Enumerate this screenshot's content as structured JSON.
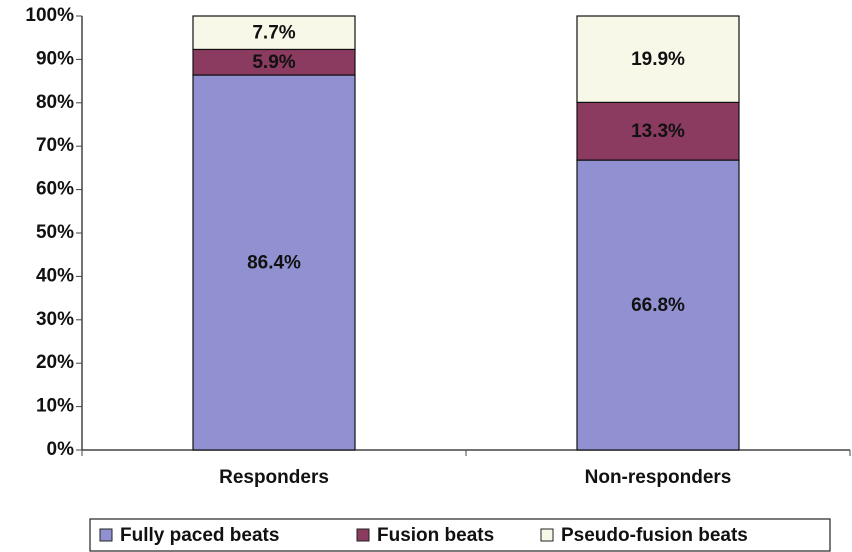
{
  "chart_data": {
    "type": "stacked_bar",
    "categories": [
      "Responders",
      "Non-responders"
    ],
    "series": [
      {
        "name": "Fully paced beats",
        "color": "#9191d2",
        "values": [
          86.4,
          66.8
        ],
        "value_labels": [
          "86.4%",
          "66.8%"
        ]
      },
      {
        "name": "Fusion beats",
        "color": "#8b3a60",
        "values": [
          5.9,
          13.3
        ],
        "value_labels": [
          "5.9%",
          "13.3%"
        ]
      },
      {
        "name": "Pseudo-fusion beats",
        "color": "#f8f8e8",
        "values": [
          7.7,
          19.9
        ],
        "value_labels": [
          "7.7%",
          "19.9%"
        ]
      }
    ],
    "ylim": [
      0,
      100
    ],
    "yticks": [
      {
        "value": 0,
        "label": "0%"
      },
      {
        "value": 10,
        "label": "10%"
      },
      {
        "value": 20,
        "label": "20%"
      },
      {
        "value": 30,
        "label": "30%"
      },
      {
        "value": 40,
        "label": "40%"
      },
      {
        "value": 50,
        "label": "50%"
      },
      {
        "value": 60,
        "label": "60%"
      },
      {
        "value": 70,
        "label": "70%"
      },
      {
        "value": 80,
        "label": "80%"
      },
      {
        "value": 90,
        "label": "90%"
      },
      {
        "value": 100,
        "label": "100%"
      }
    ],
    "legend_position": "bottom"
  }
}
